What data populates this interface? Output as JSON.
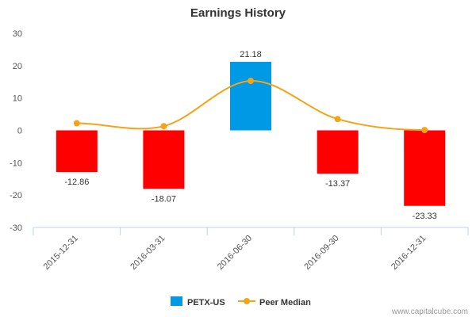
{
  "chart_data": {
    "type": "bar",
    "title": "Earnings History",
    "categories": [
      "2015-12-31",
      "2016-03-31",
      "2016-06-30",
      "2016-09-30",
      "2016-12-31"
    ],
    "series": [
      {
        "name": "PETX-US",
        "type": "bar",
        "values": [
          -12.86,
          -18.07,
          21.18,
          -13.37,
          -23.33
        ],
        "data_labels": [
          "-12.86",
          "-18.07",
          "21.18",
          "-13.37",
          "-23.33"
        ],
        "colors": [
          "#ff0000",
          "#ff0000",
          "#0099e6",
          "#ff0000",
          "#ff0000"
        ]
      },
      {
        "name": "Peer Median",
        "type": "line",
        "smooth": true,
        "values": [
          2.2,
          1.3,
          15.3,
          3.5,
          0.1
        ],
        "color": "#f5a316"
      }
    ],
    "yticks": [
      "30",
      "20",
      "10",
      "0",
      "-10",
      "-20",
      "-30"
    ],
    "ylim": [
      -30,
      30
    ],
    "xlabel": "",
    "ylabel": "",
    "grid": false,
    "legend_position": "bottom-center",
    "colors": {
      "negative": "#ff0000",
      "positive": "#0099e6",
      "median": "#f5a316"
    }
  },
  "credit": "www.capitalcube.com"
}
